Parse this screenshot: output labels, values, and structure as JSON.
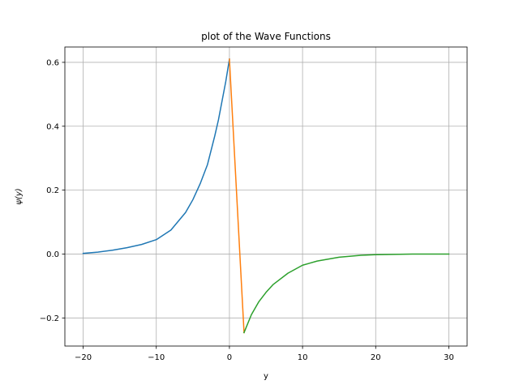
{
  "chart_data": {
    "type": "line",
    "title": "plot of the Wave Functions",
    "xlabel": "y",
    "ylabel": "ψ(y)",
    "xlim": [
      -22.5,
      32.5
    ],
    "ylim": [
      -0.288,
      0.648
    ],
    "grid": true,
    "x_ticks": [
      -20,
      -10,
      0,
      10,
      20,
      30
    ],
    "x_tick_labels": [
      "−20",
      "−10",
      "0",
      "10",
      "20",
      "30"
    ],
    "y_ticks": [
      -0.2,
      0.0,
      0.2,
      0.4,
      0.6
    ],
    "y_tick_labels": [
      "−0.2",
      "0.0",
      "0.2",
      "0.4",
      "0.6"
    ],
    "series": [
      {
        "color": "#1f77b4",
        "x": [
          -20,
          -18,
          -16,
          -14,
          -12,
          -10,
          -8,
          -6,
          -5,
          -4,
          -3,
          -2,
          -1.5,
          -1,
          -0.5,
          0
        ],
        "y": [
          0.002,
          0.006,
          0.012,
          0.02,
          0.03,
          0.045,
          0.075,
          0.13,
          0.17,
          0.22,
          0.28,
          0.37,
          0.42,
          0.48,
          0.54,
          0.61
        ]
      },
      {
        "color": "#ff7f0e",
        "x": [
          0,
          2
        ],
        "y": [
          0.61,
          -0.246
        ]
      },
      {
        "color": "#2ca02c",
        "x": [
          2,
          3,
          4,
          5,
          6,
          8,
          10,
          12,
          15,
          18,
          20,
          25,
          30
        ],
        "y": [
          -0.246,
          -0.19,
          -0.15,
          -0.12,
          -0.095,
          -0.06,
          -0.035,
          -0.022,
          -0.01,
          -0.004,
          -0.002,
          0.0,
          0.0
        ]
      }
    ]
  }
}
